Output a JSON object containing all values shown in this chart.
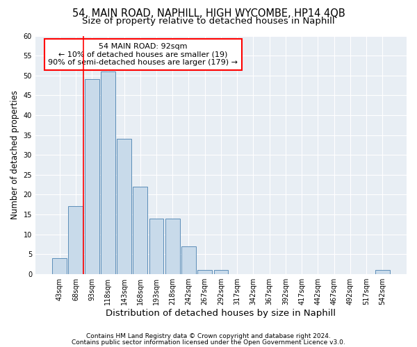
{
  "title1": "54, MAIN ROAD, NAPHILL, HIGH WYCOMBE, HP14 4QB",
  "title2": "Size of property relative to detached houses in Naphill",
  "xlabel": "Distribution of detached houses by size in Naphill",
  "ylabel": "Number of detached properties",
  "bin_labels": [
    "43sqm",
    "68sqm",
    "93sqm",
    "118sqm",
    "143sqm",
    "168sqm",
    "193sqm",
    "218sqm",
    "242sqm",
    "267sqm",
    "292sqm",
    "317sqm",
    "342sqm",
    "367sqm",
    "392sqm",
    "417sqm",
    "442sqm",
    "467sqm",
    "492sqm",
    "517sqm",
    "542sqm"
  ],
  "bar_values": [
    4,
    17,
    49,
    51,
    34,
    22,
    14,
    14,
    7,
    1,
    1,
    0,
    0,
    0,
    0,
    0,
    0,
    0,
    0,
    0,
    1
  ],
  "bar_color": "#c8daea",
  "bar_edge_color": "#5b8db8",
  "annotation_box_text": "54 MAIN ROAD: 92sqm\n← 10% of detached houses are smaller (19)\n90% of semi-detached houses are larger (179) →",
  "vline_x_index": 2,
  "ylim": [
    0,
    60
  ],
  "yticks": [
    0,
    5,
    10,
    15,
    20,
    25,
    30,
    35,
    40,
    45,
    50,
    55,
    60
  ],
  "footer1": "Contains HM Land Registry data © Crown copyright and database right 2024.",
  "footer2": "Contains public sector information licensed under the Open Government Licence v3.0.",
  "bg_color": "#ffffff",
  "plot_bg_color": "#e8eef4",
  "grid_color": "#ffffff",
  "title1_fontsize": 10.5,
  "title2_fontsize": 9.5,
  "ylabel_fontsize": 8.5,
  "xlabel_fontsize": 9.5,
  "tick_fontsize": 7,
  "annotation_fontsize": 8,
  "footer_fontsize": 6.5
}
